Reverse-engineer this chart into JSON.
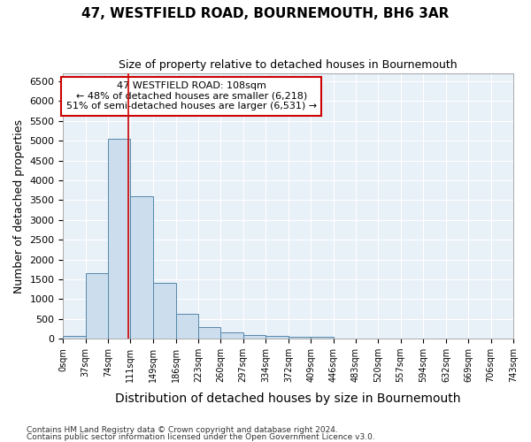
{
  "title": "47, WESTFIELD ROAD, BOURNEMOUTH, BH6 3AR",
  "subtitle": "Size of property relative to detached houses in Bournemouth",
  "xlabel": "Distribution of detached houses by size in Bournemouth",
  "ylabel": "Number of detached properties",
  "footer_line1": "Contains HM Land Registry data © Crown copyright and database right 2024.",
  "footer_line2": "Contains public sector information licensed under the Open Government Licence v3.0.",
  "bar_edges": [
    0,
    37,
    74,
    111,
    149,
    186,
    223,
    260,
    297,
    334,
    372,
    409,
    446,
    483,
    520,
    557,
    594,
    632,
    669,
    706,
    743
  ],
  "bar_heights": [
    70,
    1650,
    5050,
    3600,
    1400,
    620,
    300,
    150,
    100,
    70,
    50,
    45,
    5,
    5,
    5,
    5,
    5,
    5,
    5,
    5
  ],
  "bar_color": "#ccdded",
  "bar_edge_color": "#5588aa",
  "bar_linewidth": 0.7,
  "plot_bg_color": "#e8f0f8",
  "grid_color": "#ffffff",
  "ylim": [
    0,
    6700
  ],
  "yticks": [
    0,
    500,
    1000,
    1500,
    2000,
    2500,
    3000,
    3500,
    4000,
    4500,
    5000,
    5500,
    6000,
    6500
  ],
  "vline_x": 108,
  "vline_color": "#cc0000",
  "vline_linewidth": 1.2,
  "annotation_text_line1": "47 WESTFIELD ROAD: 108sqm",
  "annotation_text_line2": "← 48% of detached houses are smaller (6,218)",
  "annotation_text_line3": "51% of semi-detached houses are larger (6,531) →",
  "annotation_box_color": "#cc0000",
  "tick_label_fontsize": 7,
  "axis_label_fontsize": 9,
  "title_fontsize": 11,
  "subtitle_fontsize": 9,
  "annotation_fontsize": 8
}
